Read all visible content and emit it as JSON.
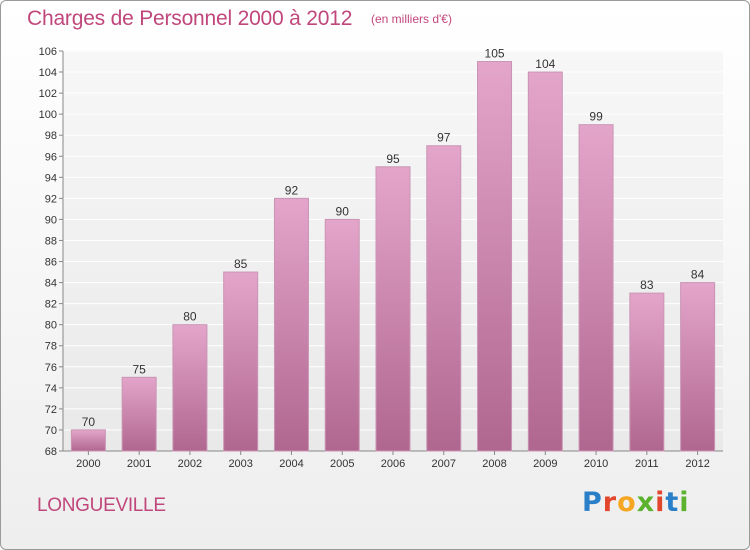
{
  "header": {
    "title": "Charges de Personnel 2000 à 2012",
    "unit": "(en milliers d'€)"
  },
  "footer": {
    "location": "LONGUEVILLE",
    "logo_text": "Proxiti"
  },
  "colors": {
    "title": "#c0477c",
    "bar_top": "#e4a5cb",
    "bar_bottom": "#b0678f",
    "axis": "#888888",
    "grid": "#ffffff"
  },
  "chart_data": {
    "type": "bar",
    "title": "Charges de Personnel 2000 à 2012",
    "xlabel": "",
    "ylabel": "",
    "categories": [
      "2000",
      "2001",
      "2002",
      "2003",
      "2004",
      "2005",
      "2006",
      "2007",
      "2008",
      "2009",
      "2010",
      "2011",
      "2012"
    ],
    "values": [
      70,
      75,
      80,
      85,
      92,
      90,
      95,
      97,
      105,
      104,
      99,
      83,
      84
    ],
    "ylim": [
      68,
      106
    ],
    "yticks": [
      68,
      70,
      72,
      74,
      76,
      78,
      80,
      82,
      84,
      86,
      88,
      90,
      92,
      94,
      96,
      98,
      100,
      102,
      104,
      106
    ],
    "grid": true,
    "data_labels": true
  }
}
